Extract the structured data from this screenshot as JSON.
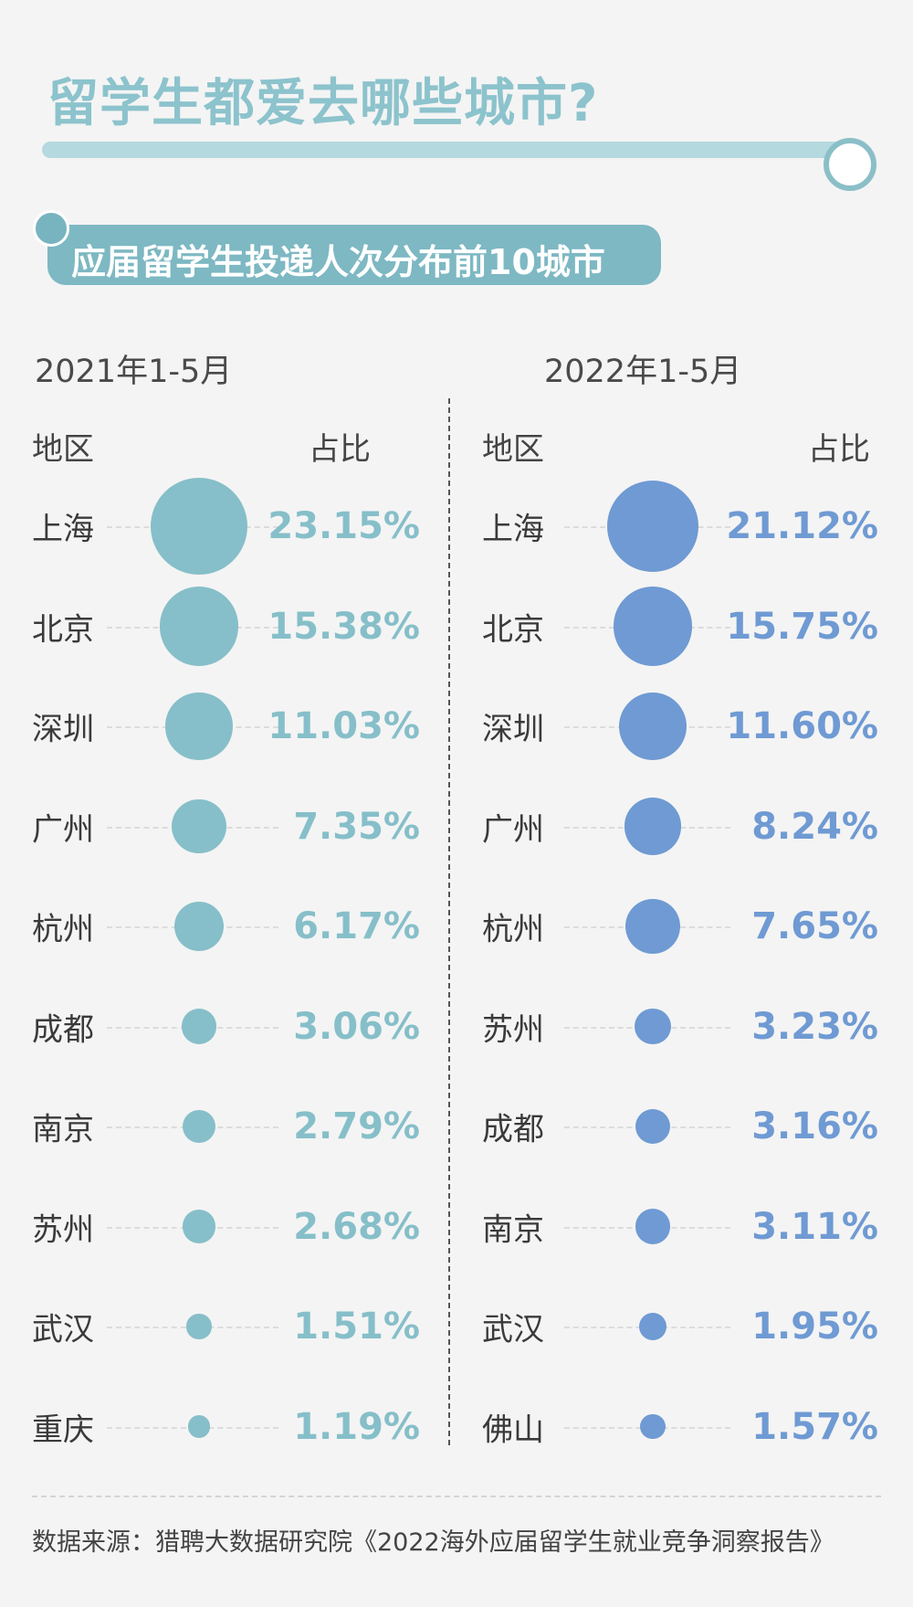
{
  "header": {
    "title": "留学生都爱去哪些城市?",
    "subtitle": "应届留学生投递人次分布前10城市"
  },
  "columns": {
    "region_label": "地区",
    "share_label": "占比"
  },
  "colors": {
    "left_series": "#86bfc9",
    "right_series": "#6f9ad3",
    "title": "#8cc3cc",
    "pill": "#7db8c3"
  },
  "chart_data": [
    {
      "type": "bubble",
      "title": "2021年1-5月",
      "categories": [
        "上海",
        "北京",
        "深圳",
        "广州",
        "杭州",
        "成都",
        "南京",
        "苏州",
        "武汉",
        "重庆"
      ],
      "values": [
        23.15,
        15.38,
        11.03,
        7.35,
        6.17,
        3.06,
        2.79,
        2.68,
        1.51,
        1.19
      ],
      "labels": [
        "23.15%",
        "15.38%",
        "11.03%",
        "7.35%",
        "6.17%",
        "3.06%",
        "2.79%",
        "2.68%",
        "1.51%",
        "1.19%"
      ]
    },
    {
      "type": "bubble",
      "title": "2022年1-5月",
      "categories": [
        "上海",
        "北京",
        "深圳",
        "广州",
        "杭州",
        "苏州",
        "成都",
        "南京",
        "武汉",
        "佛山"
      ],
      "values": [
        21.12,
        15.75,
        11.6,
        8.24,
        7.65,
        3.23,
        3.16,
        3.11,
        1.95,
        1.57
      ],
      "labels": [
        "21.12%",
        "15.75%",
        "11.60%",
        "8.24%",
        "7.65%",
        "3.23%",
        "3.16%",
        "3.11%",
        "1.95%",
        "1.57%"
      ]
    }
  ],
  "footer": {
    "source": "数据来源：猎聘大数据研究院《2022海外应届留学生就业竞争洞察报告》"
  }
}
